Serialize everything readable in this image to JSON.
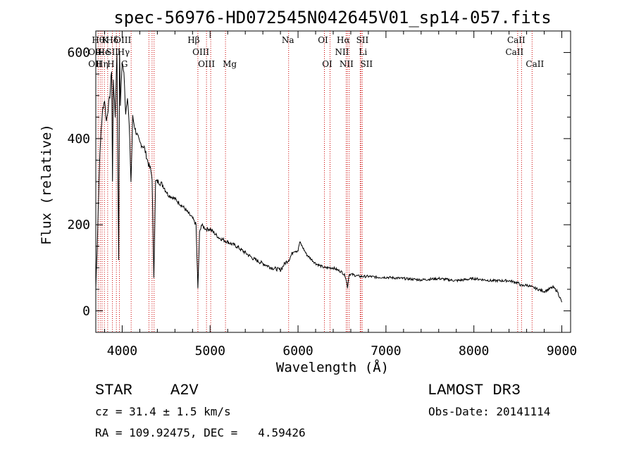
{
  "chart_data": {
    "type": "line",
    "title": "spec-56976-HD072545N042645V01_sp14-057.fits",
    "xlabel": "Wavelength (Å)",
    "ylabel": "Flux (relative)",
    "xlim": [
      3700,
      9100
    ],
    "ylim": [
      -50,
      650
    ],
    "xticks": [
      4000,
      5000,
      6000,
      7000,
      8000,
      9000
    ],
    "yticks": [
      0,
      200,
      400,
      600
    ],
    "x_minor_step": 200,
    "y_minor_step": 50,
    "grid": false,
    "line_color": "#000000",
    "marker_color": "#cc0000",
    "series": [
      {
        "x": [
          3700,
          3720,
          3740,
          3760,
          3780,
          3800,
          3820,
          3840,
          3860,
          3880,
          3890,
          3900,
          3920,
          3940,
          3960,
          3970,
          3980,
          4000,
          4020,
          4040,
          4060,
          4080,
          4100,
          4120,
          4150,
          4200,
          4250,
          4300,
          4320,
          4340,
          4360,
          4380,
          4420,
          4470,
          4520,
          4600,
          4700,
          4800,
          4840,
          4861,
          4880,
          4900,
          4950,
          5000,
          5050,
          5100,
          5200,
          5300,
          5400,
          5500,
          5600,
          5700,
          5800,
          5850,
          5900,
          5950,
          6000,
          6020,
          6100,
          6200,
          6300,
          6400,
          6500,
          6540,
          6563,
          6580,
          6600,
          6700,
          6800,
          6900,
          7000,
          7200,
          7400,
          7600,
          7800,
          8000,
          8200,
          8400,
          8500,
          8542,
          8600,
          8662,
          8800,
          8900,
          8950,
          9000
        ],
        "y": [
          50,
          180,
          330,
          420,
          470,
          490,
          440,
          470,
          500,
          560,
          300,
          540,
          450,
          600,
          120,
          610,
          480,
          580,
          550,
          460,
          500,
          430,
          300,
          450,
          420,
          390,
          380,
          340,
          330,
          310,
          80,
          300,
          300,
          290,
          270,
          260,
          240,
          215,
          200,
          50,
          180,
          200,
          190,
          190,
          180,
          170,
          160,
          150,
          135,
          120,
          110,
          100,
          95,
          110,
          120,
          140,
          140,
          160,
          130,
          110,
          100,
          100,
          90,
          80,
          55,
          85,
          85,
          80,
          80,
          78,
          78,
          75,
          72,
          75,
          70,
          75,
          70,
          70,
          65,
          58,
          60,
          55,
          45,
          55,
          45,
          20
        ]
      }
    ],
    "spectral_lines": [
      {
        "label": "Hβ",
        "x": 4861
      },
      {
        "label": "OIII",
        "x": 4959
      },
      {
        "label": "OIII",
        "x": 5007
      },
      {
        "label": "Mg",
        "x": 5175
      },
      {
        "label": "Na",
        "x": 5893
      },
      {
        "label": "OI",
        "x": 6300
      },
      {
        "label": "OI",
        "x": 6364
      },
      {
        "label": "NII",
        "x": 6548
      },
      {
        "label": "Hα",
        "x": 6563
      },
      {
        "label": "NII",
        "x": 6583
      },
      {
        "label": "Li",
        "x": 6707
      },
      {
        "label": "SII",
        "x": 6716
      },
      {
        "label": "SII",
        "x": 6731
      },
      {
        "label": "CaII",
        "x": 8498
      },
      {
        "label": "CaII",
        "x": 8542
      },
      {
        "label": "CaII",
        "x": 8662
      }
    ],
    "blue_line_labels": [
      {
        "label": "Hθ",
        "row": 0
      },
      {
        "label": "K",
        "row": 0
      },
      {
        "label": "Hδ",
        "row": 0
      },
      {
        "label": "OIII",
        "row": 0
      },
      {
        "label": "OII",
        "row": 1
      },
      {
        "label": "He",
        "row": 1
      },
      {
        "label": "SII",
        "row": 1
      },
      {
        "label": "Hγ",
        "row": 1
      },
      {
        "label": "OII",
        "row": 2
      },
      {
        "label": "Hη",
        "row": 2
      },
      {
        "label": "H",
        "row": 2
      },
      {
        "label": "G",
        "row": 2
      }
    ],
    "blue_marker_positions": [
      3727,
      3750,
      3771,
      3798,
      3835,
      3889,
      3934,
      3969,
      4102,
      4304,
      4340,
      4363
    ]
  },
  "info": {
    "object_class": "STAR",
    "subclass": "A2V",
    "survey": "LAMOST DR3",
    "redshift_text": "cz = 31.4 ± 1.5 km/s",
    "obs_date": "Obs-Date: 20141114",
    "coords": "RA = 109.92475, DEC =   4.59426"
  }
}
